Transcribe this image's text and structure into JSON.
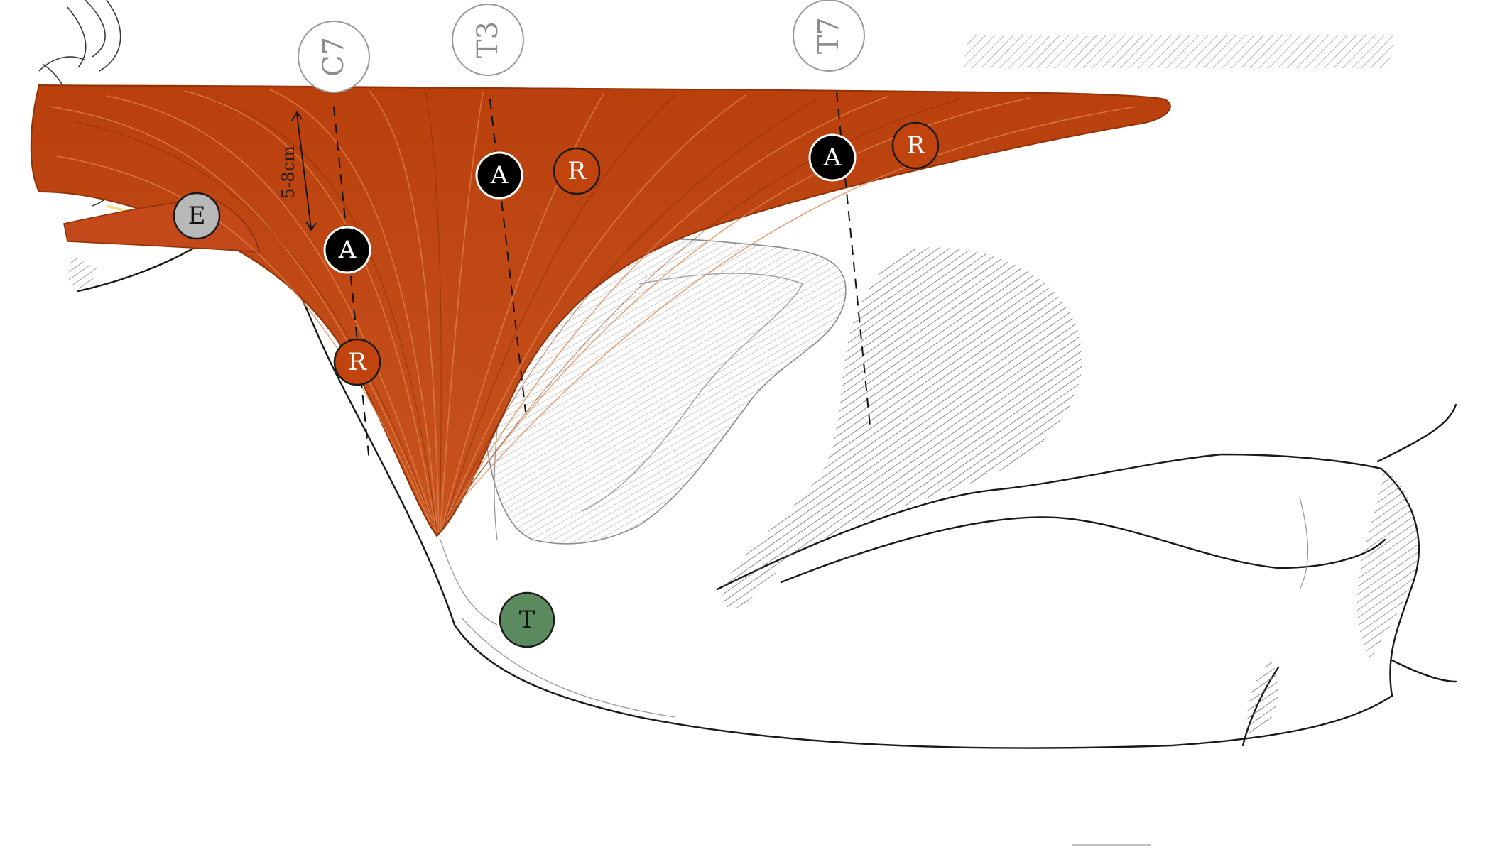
{
  "vertebra_labels": {
    "c7": "C7",
    "t3": "T3",
    "t7": "T7"
  },
  "markers": {
    "a": "A",
    "r": "R",
    "e": "E",
    "t": "T"
  },
  "dimension_label": "5-8cm",
  "colors": {
    "muscle": "#c1440e",
    "muscle_light": "#d86a35",
    "marker_a": "#000000",
    "marker_r": "#c1440e",
    "marker_e": "#b8b8b8",
    "marker_t": "#5b8a5e",
    "outline": "#1a1a1a",
    "hatch": "#6f6f6f",
    "label_gray": "#8d8d8d"
  }
}
